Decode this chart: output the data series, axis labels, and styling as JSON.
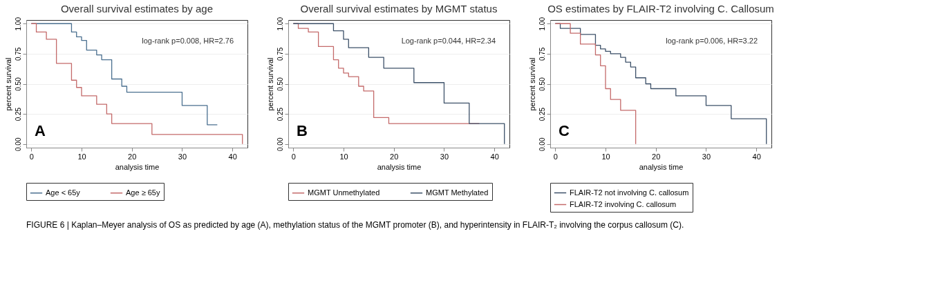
{
  "chart_data": [
    {
      "type": "step",
      "title": "Overall survival estimates by age",
      "xlabel": "analysis time",
      "ylabel": "percent survival",
      "xlim": [
        -1,
        43
      ],
      "xticks": [
        0,
        10,
        20,
        30,
        40
      ],
      "ylim": [
        -0.03,
        1.03
      ],
      "yticks": [
        {
          "value": 0,
          "label": "0.00"
        },
        {
          "value": 0.25,
          "label": "0.25"
        },
        {
          "value": 0.5,
          "label": "0.50"
        },
        {
          "value": 0.75,
          "label": "0.75"
        },
        {
          "value": 1,
          "label": "1.00"
        }
      ],
      "grid": "y",
      "legend": "bottom",
      "marker": "none",
      "line_style": "solid",
      "annotations": [
        "log-rank p=0.008, HR=2.76",
        "A",
        "FIGURE 6 | Kaplan–Meyer analysis of OS as predicted by age (A), methylation status of the MGMT promoter (B), and hyperintensity in FLAIR-T₂ involving the corpus callosum (C)."
      ],
      "series": [
        {
          "name": "Age < 65y",
          "color": "#4a6f8f",
          "x": [
            0,
            8,
            9,
            10,
            11,
            13,
            14,
            16,
            18,
            19,
            30,
            35,
            37
          ],
          "values": [
            1,
            0.93,
            0.89,
            0.86,
            0.78,
            0.74,
            0.7,
            0.54,
            0.48,
            0.43,
            0.32,
            0.16,
            0.16
          ]
        },
        {
          "name": "Age ≥ 65y",
          "color": "#c46a6a",
          "x": [
            0,
            1,
            3,
            5,
            8,
            9,
            10,
            13,
            15,
            16,
            24,
            42
          ],
          "values": [
            1,
            0.93,
            0.87,
            0.67,
            0.53,
            0.47,
            0.4,
            0.33,
            0.25,
            0.17,
            0.08,
            0
          ]
        }
      ]
    },
    {
      "type": "step",
      "title": "Overall survival estimates by MGMT status",
      "xlabel": "analysis time",
      "ylabel": "percent survival",
      "xlim": [
        -1,
        43
      ],
      "xticks": [
        0,
        10,
        20,
        30,
        40
      ],
      "ylim": [
        -0.03,
        1.03
      ],
      "yticks": [
        {
          "value": 0,
          "label": "0.00"
        },
        {
          "value": 0.25,
          "label": "0.25"
        },
        {
          "value": 0.5,
          "label": "0.50"
        },
        {
          "value": 0.75,
          "label": "0.75"
        },
        {
          "value": 1,
          "label": "1.00"
        }
      ],
      "grid": "y",
      "legend": "bottom",
      "marker": "none",
      "line_style": "solid",
      "annotations": [
        "Log-rank p=0.044, HR=2.34",
        "B"
      ],
      "series": [
        {
          "name": "MGMT Unmethylated",
          "color": "#c46a6a",
          "x": [
            0,
            1,
            3,
            5,
            8,
            9,
            10,
            11,
            13,
            14,
            16,
            19,
            37
          ],
          "values": [
            1,
            0.96,
            0.93,
            0.81,
            0.7,
            0.63,
            0.59,
            0.56,
            0.48,
            0.44,
            0.22,
            0.17,
            0.17
          ]
        },
        {
          "name": "MGMT Methylated",
          "color": "#3c5068",
          "x": [
            0,
            8,
            10,
            11,
            15,
            18,
            24,
            30,
            35,
            42
          ],
          "values": [
            1,
            0.94,
            0.87,
            0.8,
            0.72,
            0.63,
            0.51,
            0.34,
            0.17,
            0
          ]
        }
      ]
    },
    {
      "type": "step",
      "title": "OS estimates by FLAIR-T2 involving C. Callosum",
      "xlabel": "analysis time",
      "ylabel": "percent survival",
      "xlim": [
        -1,
        43
      ],
      "xticks": [
        0,
        10,
        20,
        30,
        40
      ],
      "ylim": [
        -0.03,
        1.03
      ],
      "yticks": [
        {
          "value": 0,
          "label": "0.00"
        },
        {
          "value": 0.25,
          "label": "0.25"
        },
        {
          "value": 0.5,
          "label": "0.50"
        },
        {
          "value": 0.75,
          "label": "0.75"
        },
        {
          "value": 1,
          "label": "1.00"
        }
      ],
      "grid": "y",
      "legend": "bottom",
      "marker": "none",
      "line_style": "solid",
      "annotations": [
        "log-rank p=0.006, HR=3.22",
        "C"
      ],
      "series": [
        {
          "name": "FLAIR-T2 not involving C. callosum",
          "color": "#3c5068",
          "x": [
            0,
            1,
            5,
            8,
            9,
            10,
            11,
            13,
            14,
            15,
            16,
            18,
            19,
            24,
            30,
            35,
            42
          ],
          "values": [
            1,
            0.96,
            0.91,
            0.82,
            0.79,
            0.77,
            0.75,
            0.72,
            0.68,
            0.64,
            0.55,
            0.5,
            0.46,
            0.4,
            0.32,
            0.21,
            0
          ]
        },
        {
          "name": "FLAIR-T2 involving C. callosum",
          "color": "#c46a6a",
          "x": [
            0,
            3,
            5,
            8,
            9,
            10,
            11,
            13,
            16
          ],
          "values": [
            1,
            0.92,
            0.83,
            0.74,
            0.65,
            0.46,
            0.37,
            0.28,
            0
          ]
        }
      ]
    }
  ]
}
